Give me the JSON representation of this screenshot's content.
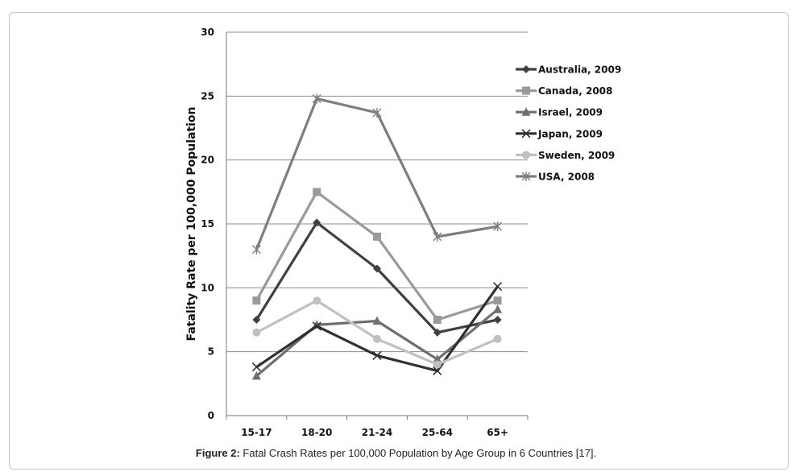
{
  "caption": {
    "label": "Figure 2:",
    "text": " Fatal Crash Rates per 100,000 Population by Age Group in 6 Countries [17]."
  },
  "chart_data": {
    "type": "line",
    "title": "",
    "xlabel": "",
    "ylabel": "Fatality Rate per 100,000 Population",
    "ylim": [
      0,
      30
    ],
    "yticks": [
      0,
      5,
      10,
      15,
      20,
      25,
      30
    ],
    "grid": true,
    "legend_position": "right",
    "categories": [
      "15-17",
      "18-20",
      "21-24",
      "25-64",
      "65+"
    ],
    "series": [
      {
        "name": "Australia, 2009",
        "values": [
          7.5,
          15.1,
          11.5,
          6.5,
          7.5
        ],
        "color": "#404040",
        "marker": "diamond"
      },
      {
        "name": "Canada, 2008",
        "values": [
          9.0,
          17.5,
          14.0,
          7.5,
          9.0
        ],
        "color": "#9a9a9a",
        "marker": "square"
      },
      {
        "name": "Israel, 2009",
        "values": [
          3.1,
          7.1,
          7.4,
          4.4,
          8.3
        ],
        "color": "#6e6e6e",
        "marker": "triangle"
      },
      {
        "name": "Japan, 2009",
        "values": [
          3.8,
          7.0,
          4.7,
          3.5,
          10.1
        ],
        "color": "#303030",
        "marker": "x"
      },
      {
        "name": "Sweden, 2009",
        "values": [
          6.5,
          9.0,
          6.0,
          4.0,
          6.0
        ],
        "color": "#c0c0c0",
        "marker": "circle"
      },
      {
        "name": "USA, 2008",
        "values": [
          13.0,
          24.8,
          23.7,
          14.0,
          14.8
        ],
        "color": "#7e7e7e",
        "marker": "star"
      }
    ]
  }
}
